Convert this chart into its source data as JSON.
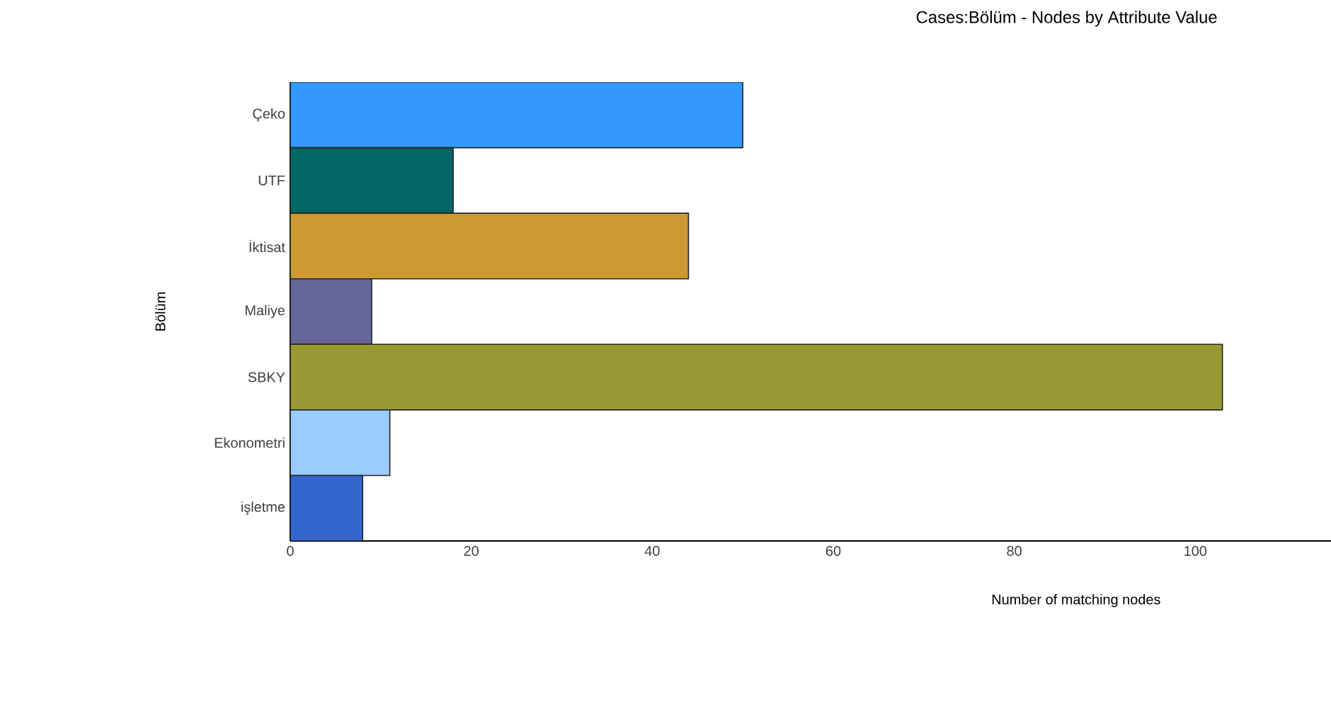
{
  "chart_data": {
    "type": "bar",
    "orientation": "horizontal",
    "title": "Cases:Bölüm - Nodes by Attribute Value",
    "xlabel": "Number of matching nodes",
    "ylabel": "Bölüm",
    "categories": [
      "Çeko",
      "UTF",
      "İktisat",
      "Maliye",
      "SBKY",
      "Ekonometri",
      "işletme"
    ],
    "values": [
      50,
      18,
      44,
      9,
      103,
      11,
      8
    ],
    "colors": [
      "#3399ff",
      "#006666",
      "#cc9933",
      "#666699",
      "#999933",
      "#99ccff",
      "#3366cc"
    ],
    "xlim": [
      0,
      115
    ],
    "xticks": [
      0,
      20,
      40,
      60,
      80,
      100
    ]
  }
}
